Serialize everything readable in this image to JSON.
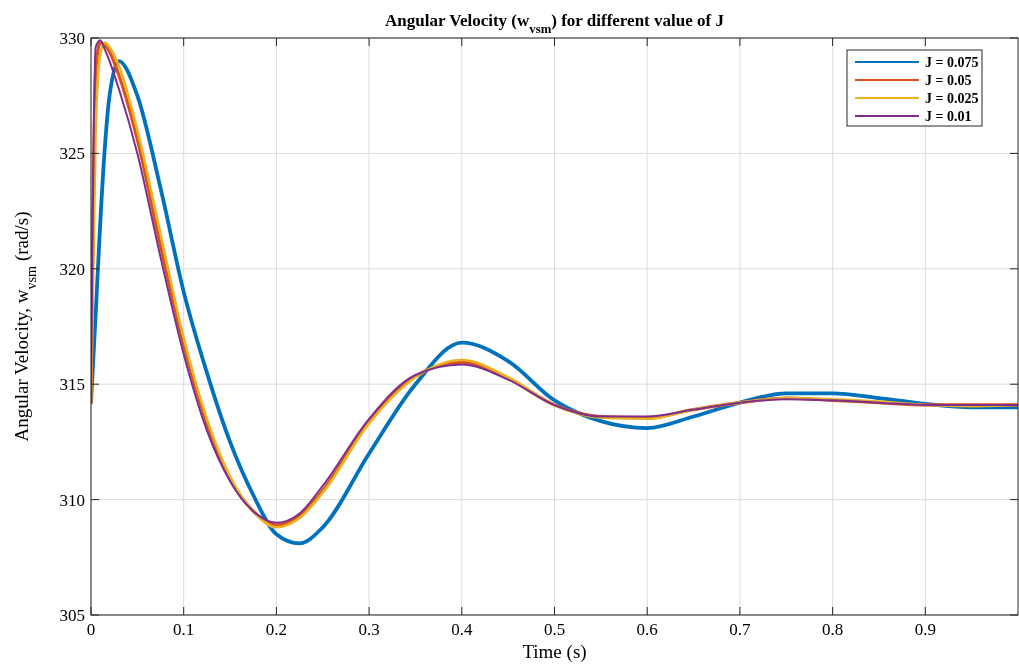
{
  "chart_data": {
    "type": "line",
    "title": "Angular Velocity (w$_{vsm}$) for different value of J",
    "xlabel": "Time (s)",
    "ylabel": "Angular Velocity, w$_{vsm}$ (rad/s)",
    "x": [
      0,
      0.005,
      0.01,
      0.015,
      0.02,
      0.03,
      0.05,
      0.075,
      0.1,
      0.125,
      0.15,
      0.175,
      0.2,
      0.225,
      0.25,
      0.3,
      0.35,
      0.4,
      0.45,
      0.5,
      0.55,
      0.6,
      0.65,
      0.7,
      0.75,
      0.8,
      0.85,
      0.9,
      0.95,
      1.0
    ],
    "series": [
      {
        "name": "J = 0.075",
        "color": "#0072bd",
        "values": [
          314.2,
          318,
          322,
          325.3,
          327.5,
          329,
          327.5,
          323.5,
          319,
          315.5,
          312.5,
          310.2,
          308.5,
          308.1,
          308.8,
          312,
          315,
          316.8,
          316,
          314.3,
          313.4,
          313.1,
          313.6,
          314.2,
          314.6,
          314.6,
          314.4,
          314.15,
          314.0,
          314.0
        ]
      },
      {
        "name": "J = 0.05",
        "color": "#d95319",
        "values": [
          314.2,
          328.5,
          329.8,
          329.7,
          329.4,
          328.4,
          325.6,
          321,
          316.7,
          313.3,
          310.9,
          309.5,
          308.9,
          309.3,
          310.4,
          313.4,
          315.35,
          315.95,
          315.25,
          314.1,
          313.6,
          313.55,
          313.9,
          314.2,
          314.4,
          314.3,
          314.2,
          314.1,
          314.1,
          314.1
        ]
      },
      {
        "name": "J = 0.025",
        "color": "#edb120",
        "values": [
          314.2,
          326,
          329.3,
          329.8,
          329.6,
          328.8,
          326,
          321.5,
          317,
          313.5,
          311,
          309.5,
          308.8,
          309.2,
          310.3,
          313.3,
          315.3,
          316.05,
          315.3,
          314.1,
          313.55,
          313.5,
          313.9,
          314.2,
          314.4,
          314.35,
          314.25,
          314.1,
          314.05,
          314.1
        ]
      },
      {
        "name": "J = 0.01",
        "color": "#7e2f8e",
        "values": [
          314.2,
          329.6,
          329.9,
          329.5,
          329,
          327.8,
          325,
          320.5,
          316.3,
          313,
          310.8,
          309.5,
          309.0,
          309.4,
          310.6,
          313.5,
          315.4,
          315.85,
          315.2,
          314.1,
          313.6,
          313.6,
          313.9,
          314.2,
          314.35,
          314.3,
          314.2,
          314.1,
          314.1,
          314.1
        ]
      }
    ],
    "xlim": [
      0,
      1
    ],
    "xticks": [
      0,
      0.1,
      0.2,
      0.3,
      0.4,
      0.5,
      0.6,
      0.7,
      0.8,
      0.9
    ],
    "ylim": [
      305,
      330
    ],
    "yticks": [
      305,
      310,
      315,
      320,
      325,
      330
    ],
    "grid": true,
    "legend": "top right"
  }
}
